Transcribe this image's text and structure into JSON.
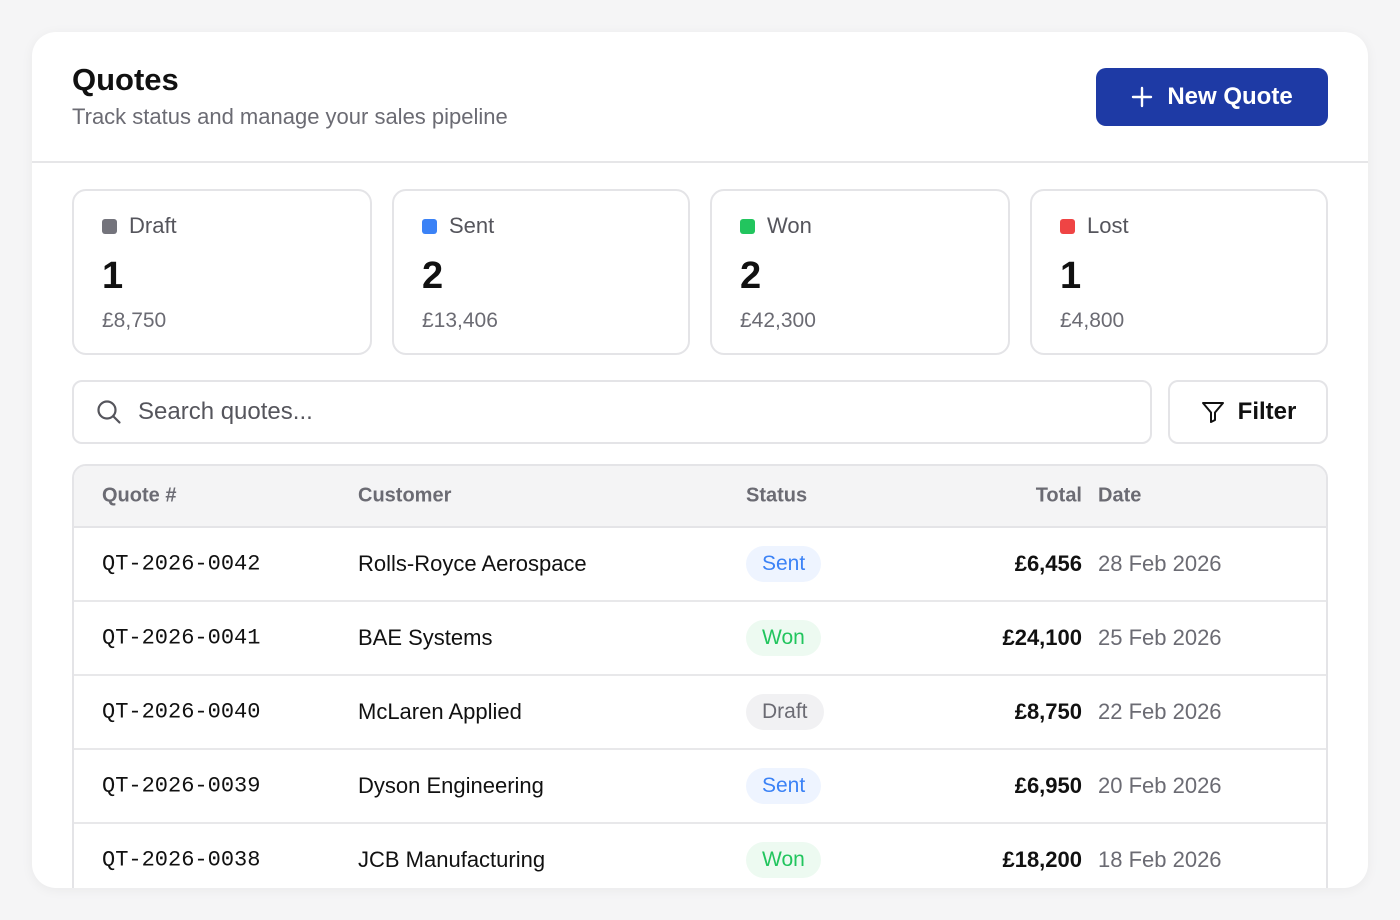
{
  "header": {
    "title": "Quotes",
    "subtitle": "Track status and manage your sales pipeline",
    "new_button": "New Quote"
  },
  "stats": [
    {
      "label": "Draft",
      "count": "1",
      "amount": "£8,750",
      "color": "#74747c"
    },
    {
      "label": "Sent",
      "count": "2",
      "amount": "£13,406",
      "color": "#3b82f6"
    },
    {
      "label": "Won",
      "count": "2",
      "amount": "£42,300",
      "color": "#22c55e"
    },
    {
      "label": "Lost",
      "count": "1",
      "amount": "£4,800",
      "color": "#ef4444"
    }
  ],
  "search": {
    "placeholder": "Search quotes...",
    "value": ""
  },
  "filter_label": "Filter",
  "table": {
    "columns": [
      "Quote #",
      "Customer",
      "Status",
      "Total",
      "Date"
    ],
    "rows": [
      {
        "id": "QT-2026-0042",
        "customer": "Rolls-Royce Aerospace",
        "status": "Sent",
        "total": "£6,456",
        "date": "28 Feb 2026"
      },
      {
        "id": "QT-2026-0041",
        "customer": "BAE Systems",
        "status": "Won",
        "total": "£24,100",
        "date": "25 Feb 2026"
      },
      {
        "id": "QT-2026-0040",
        "customer": "McLaren Applied",
        "status": "Draft",
        "total": "£8,750",
        "date": "22 Feb 2026"
      },
      {
        "id": "QT-2026-0039",
        "customer": "Dyson Engineering",
        "status": "Sent",
        "total": "£6,950",
        "date": "20 Feb 2026"
      },
      {
        "id": "QT-2026-0038",
        "customer": "JCB Manufacturing",
        "status": "Won",
        "total": "£18,200",
        "date": "18 Feb 2026"
      }
    ]
  },
  "colors": {
    "primary": "#1e3aa5",
    "sent_bg": "#eef4ff",
    "sent_fg": "#3b82f6",
    "won_bg": "#edfaf1",
    "won_fg": "#22c55e",
    "draft_bg": "#f1f1f3",
    "draft_fg": "#6b6b73"
  }
}
